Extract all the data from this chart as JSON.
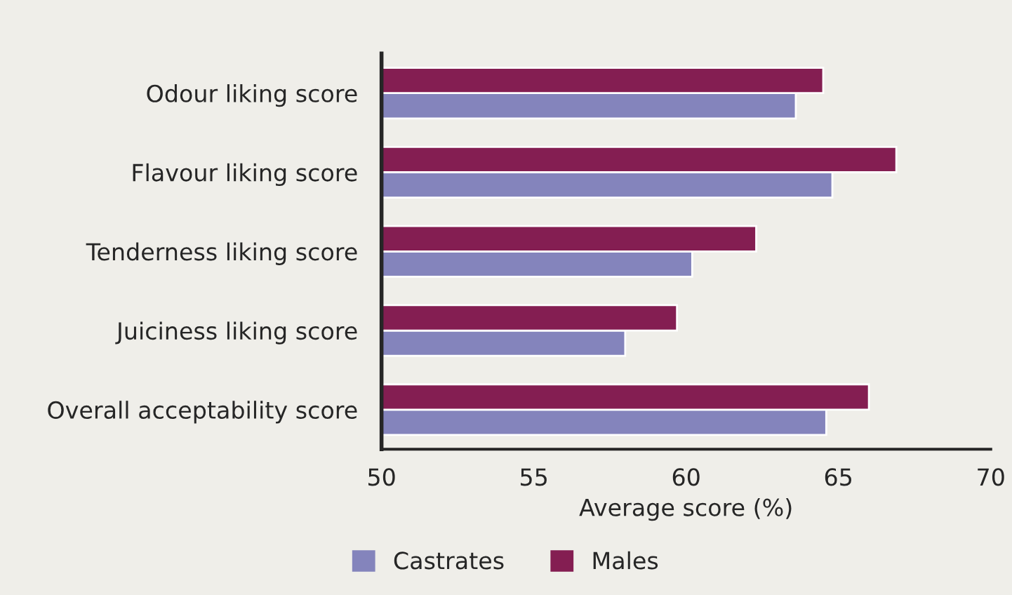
{
  "chart_data": {
    "type": "bar",
    "orientation": "horizontal",
    "xlabel": "Average score (%)",
    "categories": [
      "Odour liking score",
      "Flavour liking score",
      "Tenderness liking score",
      "Juiciness liking score",
      "Overall acceptability score"
    ],
    "series": [
      {
        "name": "Castrates",
        "color": "#8484bc",
        "values": [
          63.6,
          64.8,
          60.2,
          58.0,
          64.6
        ]
      },
      {
        "name": "Males",
        "color": "#841e52",
        "values": [
          64.5,
          66.9,
          62.3,
          59.7,
          66.0
        ]
      }
    ],
    "xlim": [
      50,
      70
    ],
    "xticks": [
      50,
      55,
      60,
      65,
      70
    ],
    "grid": false,
    "legend": "bottom"
  }
}
